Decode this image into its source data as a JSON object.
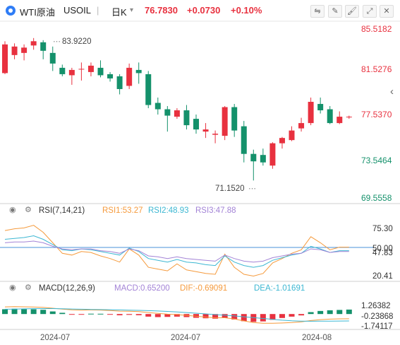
{
  "header": {
    "symbol_name": "WTI原油",
    "symbol_code": "USOIL",
    "period": "日K",
    "period_caret": "▾",
    "price": "76.7830",
    "change": "+0.0730",
    "change_pct": "+0.10%"
  },
  "toolbar": {
    "icons": [
      "draw-icon",
      "edit-icon",
      "brush-icon",
      "expand-icon",
      "close-icon"
    ]
  },
  "colors": {
    "up": "#e8313f",
    "down": "#14916b",
    "price_text": "#e8313f",
    "grid": "#f0f0f0",
    "separator": "#cfcfcf"
  },
  "main_axis": {
    "labels": [
      "85.5182",
      "81.5276",
      "77.5370",
      "73.5464",
      "69.5558"
    ]
  },
  "annotations": {
    "high": "83.9220",
    "low": "71.1520"
  },
  "rsi": {
    "label": "RSI(7,14,21)",
    "rsi1": "RSI1:53.27",
    "rsi2": "RSI2:48.93",
    "rsi3": "RSI3:47.88",
    "axis_labels": [
      "75.30",
      "50.00",
      "47.83",
      "20.41"
    ]
  },
  "macd": {
    "label": "MACD(12,26,9)",
    "macd_val": "MACD:0.65200",
    "dif_val": "DIF:-0.69091",
    "dea_val": "DEA:-1.01691",
    "axis_labels": [
      "1.26382",
      "-0.23868",
      "-1.74117"
    ]
  },
  "x_axis": {
    "labels": [
      "2024-07",
      "2024-07",
      "2024-08"
    ]
  },
  "chart_data": [
    {
      "type": "candlestick",
      "title": "WTI原油 USOIL 日K",
      "y_ticks": [
        85.5182,
        81.5276,
        77.537,
        73.5464,
        69.5558
      ],
      "ylim": [
        69.5558,
        85.5182
      ],
      "candles": [
        {
          "o": 81.3,
          "h": 84.3,
          "l": 81.2,
          "c": 84.0
        },
        {
          "o": 83.0,
          "h": 84.1,
          "l": 82.6,
          "c": 83.8
        },
        {
          "o": 83.2,
          "h": 84.0,
          "l": 82.5,
          "c": 83.7
        },
        {
          "o": 83.9,
          "h": 84.6,
          "l": 83.5,
          "c": 84.3
        },
        {
          "o": 84.2,
          "h": 84.4,
          "l": 82.6,
          "c": 83.4
        },
        {
          "o": 83.2,
          "h": 83.8,
          "l": 81.5,
          "c": 82.2
        },
        {
          "o": 81.8,
          "h": 82.1,
          "l": 81.0,
          "c": 81.2
        },
        {
          "o": 81.1,
          "h": 81.8,
          "l": 80.2,
          "c": 81.6
        },
        {
          "o": 81.7,
          "h": 82.3,
          "l": 80.6,
          "c": 81.7
        },
        {
          "o": 81.4,
          "h": 82.3,
          "l": 81.0,
          "c": 82.0
        },
        {
          "o": 81.8,
          "h": 82.5,
          "l": 80.9,
          "c": 81.1
        },
        {
          "o": 81.2,
          "h": 81.4,
          "l": 80.5,
          "c": 80.8
        },
        {
          "o": 81.0,
          "h": 81.2,
          "l": 79.3,
          "c": 79.8
        },
        {
          "o": 80.1,
          "h": 82.2,
          "l": 79.8,
          "c": 81.8
        },
        {
          "o": 81.6,
          "h": 82.3,
          "l": 80.3,
          "c": 81.3
        },
        {
          "o": 81.2,
          "h": 81.5,
          "l": 78.0,
          "c": 78.3
        },
        {
          "o": 78.5,
          "h": 79.0,
          "l": 77.4,
          "c": 77.9
        },
        {
          "o": 77.9,
          "h": 78.2,
          "l": 75.8,
          "c": 77.3
        },
        {
          "o": 77.2,
          "h": 78.0,
          "l": 77.0,
          "c": 77.8
        },
        {
          "o": 77.8,
          "h": 78.3,
          "l": 76.0,
          "c": 76.4
        },
        {
          "o": 77.0,
          "h": 77.4,
          "l": 75.6,
          "c": 76.0
        },
        {
          "o": 75.8,
          "h": 76.6,
          "l": 75.2,
          "c": 76.0
        },
        {
          "o": 75.5,
          "h": 75.9,
          "l": 74.7,
          "c": 75.6
        },
        {
          "o": 75.4,
          "h": 78.2,
          "l": 75.0,
          "c": 78.1
        },
        {
          "o": 78.1,
          "h": 78.4,
          "l": 75.3,
          "c": 75.9
        },
        {
          "o": 76.3,
          "h": 76.8,
          "l": 72.9,
          "c": 73.7
        },
        {
          "o": 73.7,
          "h": 74.1,
          "l": 71.2,
          "c": 73.0
        },
        {
          "o": 73.6,
          "h": 74.2,
          "l": 72.6,
          "c": 72.9
        },
        {
          "o": 72.6,
          "h": 74.8,
          "l": 72.3,
          "c": 74.7
        },
        {
          "o": 74.7,
          "h": 75.3,
          "l": 74.2,
          "c": 75.2
        },
        {
          "o": 75.0,
          "h": 76.3,
          "l": 74.9,
          "c": 75.9
        },
        {
          "o": 76.1,
          "h": 77.1,
          "l": 75.8,
          "c": 76.6
        },
        {
          "o": 76.6,
          "h": 79.0,
          "l": 76.4,
          "c": 78.6
        },
        {
          "o": 78.4,
          "h": 79.0,
          "l": 77.5,
          "c": 77.8
        },
        {
          "o": 77.9,
          "h": 78.2,
          "l": 76.5,
          "c": 76.6
        },
        {
          "o": 76.6,
          "h": 77.7,
          "l": 76.5,
          "c": 77.2
        },
        {
          "o": 77.2,
          "h": 77.3,
          "l": 77.0,
          "c": 77.2
        }
      ]
    },
    {
      "type": "line",
      "name": "RSI(7,14,21)",
      "ylim": [
        20.41,
        75.3
      ],
      "y_ticks": [
        75.3,
        50.0,
        47.83,
        20.41
      ],
      "series": [
        {
          "name": "RSI1",
          "color": "#f59a3c",
          "values": [
            72,
            74,
            75,
            78,
            70,
            58,
            46,
            44,
            48,
            47,
            43,
            40,
            36,
            51,
            44,
            30,
            28,
            26,
            34,
            27,
            25,
            23,
            22,
            45,
            30,
            22,
            20,
            23,
            35,
            40,
            46,
            50,
            65,
            58,
            50,
            53,
            53
          ]
        },
        {
          "name": "RSI2",
          "color": "#3cb7d2",
          "values": [
            62,
            63,
            64,
            66,
            62,
            56,
            50,
            49,
            51,
            50,
            48,
            46,
            44,
            52,
            48,
            40,
            38,
            36,
            39,
            36,
            35,
            33,
            32,
            43,
            36,
            32,
            30,
            32,
            38,
            41,
            44,
            46,
            54,
            51,
            47,
            49,
            49
          ]
        },
        {
          "name": "RSI3",
          "color": "#a383d6",
          "values": [
            58,
            59,
            59,
            60,
            58,
            54,
            51,
            50,
            51,
            51,
            49,
            48,
            46,
            51,
            49,
            43,
            42,
            40,
            42,
            40,
            39,
            38,
            37,
            44,
            40,
            37,
            36,
            37,
            41,
            43,
            45,
            46,
            51,
            50,
            47,
            48,
            48
          ]
        }
      ]
    },
    {
      "type": "bar",
      "name": "MACD(12,26,9)",
      "ylim": [
        -1.74117,
        1.26382
      ],
      "y_ticks": [
        1.26382,
        -0.23868,
        -1.74117
      ],
      "series": [
        {
          "name": "MACD",
          "values": [
            0.7,
            0.78,
            0.72,
            0.7,
            0.62,
            0.38,
            0.18,
            -0.02,
            -0.05,
            0.05,
            0.04,
            -0.02,
            -0.18,
            -0.12,
            -0.17,
            -0.38,
            -0.45,
            -0.42,
            -0.38,
            -0.45,
            -0.55,
            -0.62,
            -0.68,
            -0.6,
            -0.8,
            -1.05,
            -1.15,
            -1.08,
            -0.85,
            -0.58,
            -0.38,
            -0.2,
            0.28,
            0.45,
            0.55,
            0.6,
            0.652
          ]
        },
        {
          "name": "DIF",
          "color": "#f59a3c",
          "values": [
            1.05,
            1.08,
            1.06,
            1.03,
            0.98,
            0.85,
            0.72,
            0.62,
            0.58,
            0.6,
            0.58,
            0.52,
            0.42,
            0.4,
            0.36,
            0.22,
            0.1,
            -0.02,
            -0.08,
            -0.2,
            -0.32,
            -0.45,
            -0.55,
            -0.55,
            -0.72,
            -1.02,
            -1.25,
            -1.35,
            -1.36,
            -1.32,
            -1.25,
            -1.15,
            -0.95,
            -0.82,
            -0.75,
            -0.7,
            -0.69
          ]
        },
        {
          "name": "DEA",
          "color": "#3cb7d2",
          "values": [
            0.7,
            0.73,
            0.76,
            0.79,
            0.8,
            0.8,
            0.78,
            0.74,
            0.7,
            0.67,
            0.65,
            0.63,
            0.6,
            0.57,
            0.54,
            0.5,
            0.45,
            0.38,
            0.3,
            0.22,
            0.12,
            0.02,
            -0.08,
            -0.18,
            -0.28,
            -0.4,
            -0.52,
            -0.65,
            -0.78,
            -0.9,
            -0.98,
            -1.04,
            -1.06,
            -1.05,
            -1.04,
            -1.03,
            -1.017
          ]
        }
      ]
    }
  ]
}
